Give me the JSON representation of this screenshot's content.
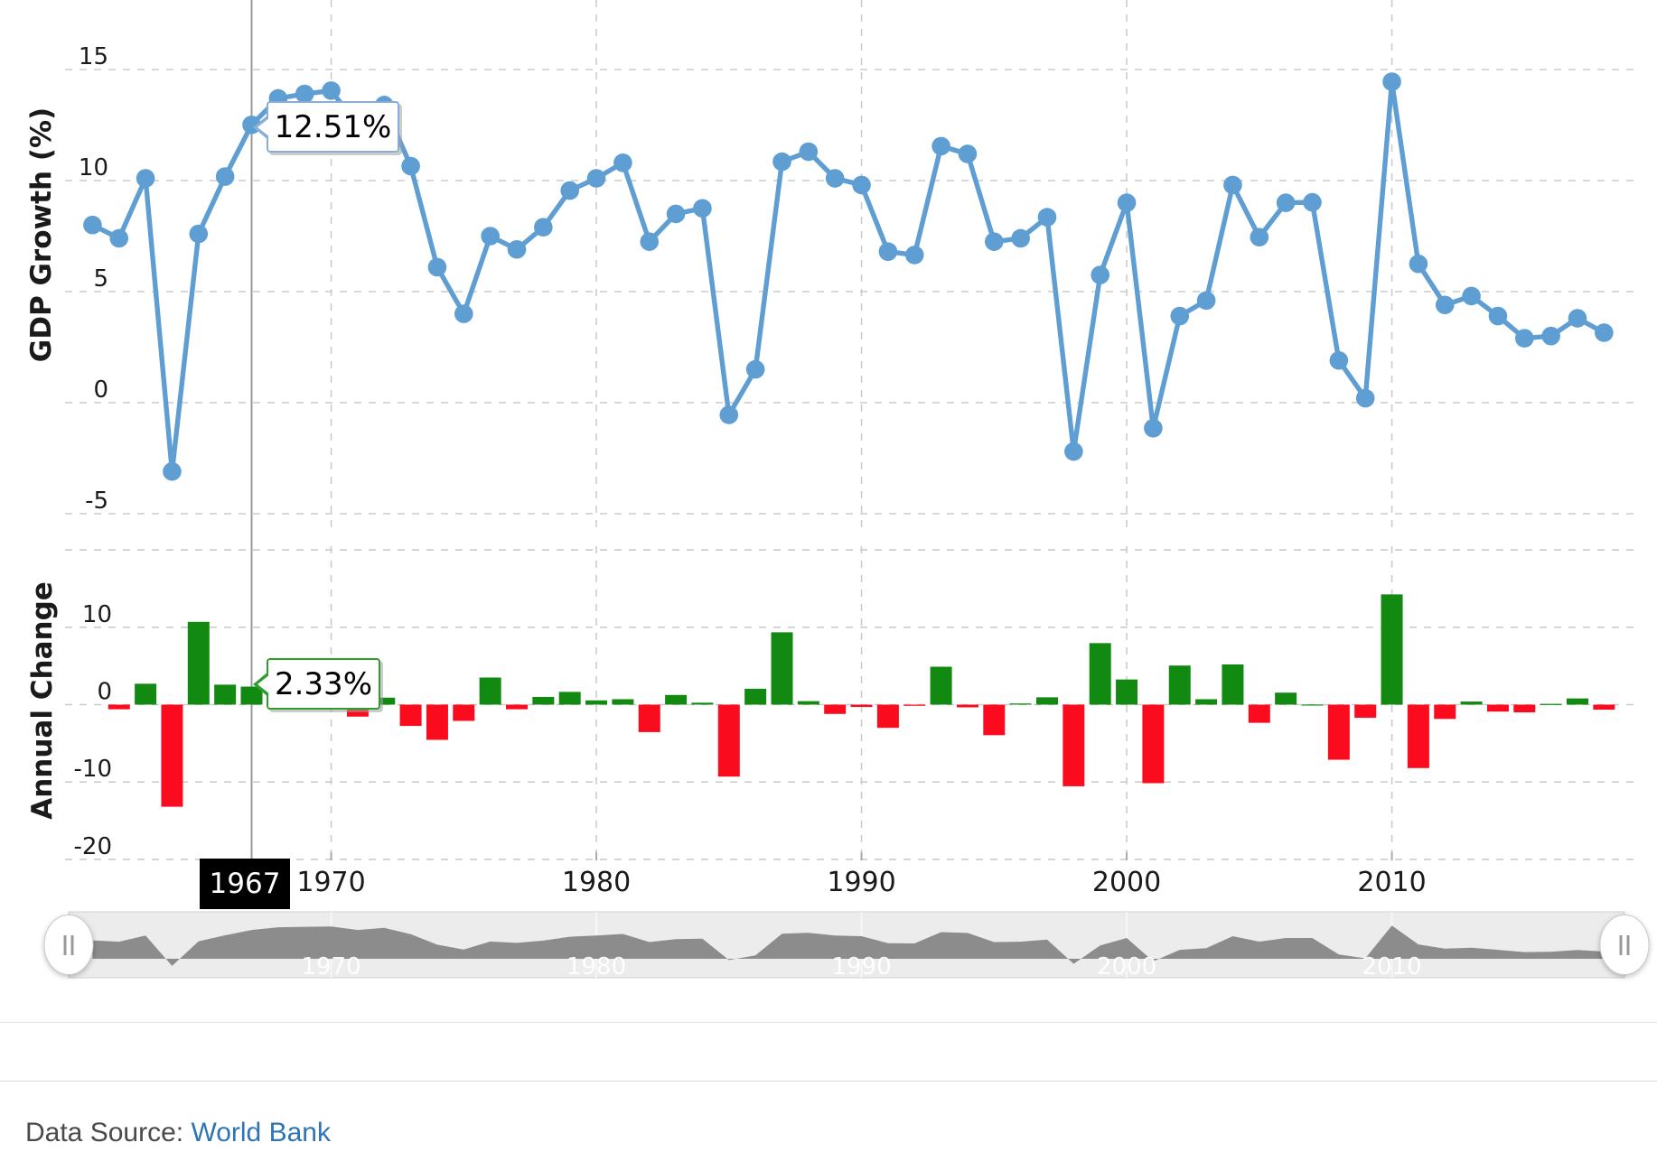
{
  "chart_data": {
    "type": "line+bar",
    "title": "",
    "x": [
      1961,
      1962,
      1963,
      1964,
      1965,
      1966,
      1967,
      1968,
      1969,
      1970,
      1971,
      1972,
      1973,
      1974,
      1975,
      1976,
      1977,
      1978,
      1979,
      1980,
      1981,
      1982,
      1983,
      1984,
      1985,
      1986,
      1987,
      1988,
      1989,
      1990,
      1991,
      1992,
      1993,
      1994,
      1995,
      1996,
      1997,
      1998,
      1999,
      2000,
      2001,
      2002,
      2003,
      2004,
      2005,
      2006,
      2007,
      2008,
      2009,
      2010,
      2011,
      2012,
      2013,
      2014,
      2015,
      2016,
      2017,
      2018
    ],
    "series": [
      {
        "name": "GDP Growth (%)",
        "type": "line",
        "values": [
          8.0,
          7.4,
          10.1,
          -3.1,
          7.6,
          10.18,
          12.51,
          13.7,
          13.9,
          14.05,
          12.5,
          13.4,
          10.65,
          6.1,
          4.0,
          7.5,
          6.9,
          7.9,
          9.55,
          10.1,
          10.8,
          7.25,
          8.5,
          8.75,
          -0.55,
          1.5,
          10.85,
          11.3,
          10.1,
          9.8,
          6.8,
          6.65,
          11.55,
          11.2,
          7.25,
          7.4,
          8.35,
          -2.2,
          5.75,
          9.0,
          -1.15,
          3.9,
          4.6,
          9.8,
          7.45,
          9.0,
          9.02,
          1.9,
          0.2,
          14.45,
          6.25,
          4.4,
          4.8,
          3.9,
          2.9,
          3.0,
          3.8,
          3.15
        ]
      },
      {
        "name": "Annual Change",
        "type": "bar",
        "values": [
          null,
          -0.6,
          2.7,
          -13.2,
          10.7,
          2.58,
          2.33,
          1.19,
          0.2,
          0.15,
          -1.55,
          0.9,
          -2.75,
          -4.55,
          -2.1,
          3.5,
          -0.6,
          1.0,
          1.65,
          0.55,
          0.7,
          -3.55,
          1.25,
          0.25,
          -9.3,
          2.05,
          9.35,
          0.45,
          -1.2,
          -0.3,
          -3.0,
          -0.15,
          4.9,
          -0.35,
          -3.95,
          0.15,
          0.95,
          -10.55,
          7.95,
          3.25,
          -10.15,
          5.05,
          0.7,
          5.2,
          -2.35,
          1.55,
          0.02,
          -7.12,
          -1.7,
          14.25,
          -8.2,
          -1.85,
          0.4,
          -0.9,
          -1.0,
          0.1,
          0.8,
          -0.65
        ]
      }
    ],
    "top_axis": {
      "title": "GDP Growth (%)",
      "ticks": [
        15,
        10,
        5,
        0,
        -5
      ],
      "range": [
        -7.5,
        18.2
      ]
    },
    "bottom_axis": {
      "title": "Annual Change",
      "ticks": [
        10,
        0,
        -10,
        -20
      ],
      "range": [
        -22,
        20
      ],
      "hidden_top_gridline": 20
    },
    "x_ticks": [
      "1970",
      "1980",
      "1990",
      "2000",
      "2010"
    ],
    "grid": "dashed",
    "legend": "none"
  },
  "hover": {
    "year": "1967",
    "line_value": "12.51%",
    "bar_value": "2.33%"
  },
  "slider": {
    "labels": [
      "1970",
      "1980",
      "1990",
      "2000",
      "2010"
    ],
    "handle_glyph": "||"
  },
  "footer": {
    "source_label": "Data Source:",
    "source_link": "World Bank"
  },
  "colors": {
    "line": "#5f9ed3",
    "positive": "#128a12",
    "negative": "#fa0c1e",
    "grid": "#cccccc",
    "hover_line": "#999999",
    "tooltip_border_line": "#88aed8",
    "tooltip_border_bar": "#2f9e2f",
    "slider_area": "#8c8c8c",
    "slider_track": "#ececec",
    "year_box_bg": "#000000",
    "axis_text": "#1a1a1a",
    "link": "#2e74b5"
  }
}
